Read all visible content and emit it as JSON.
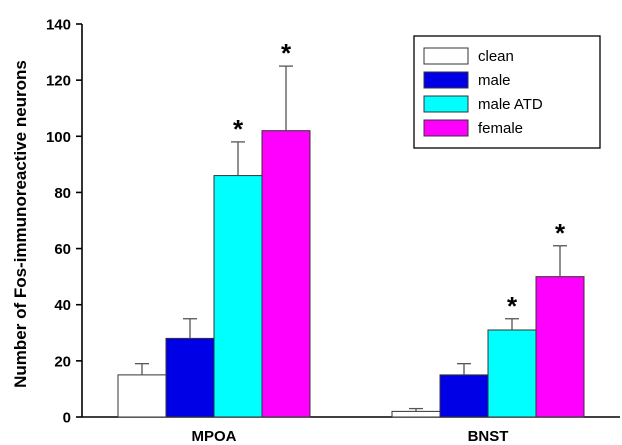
{
  "chart_data": {
    "type": "bar",
    "title": "",
    "xlabel": "",
    "ylabel": "Number of Fos-immunoreactive neurons",
    "ylim": [
      0,
      140
    ],
    "yticks": [
      0,
      20,
      40,
      60,
      80,
      100,
      120,
      140
    ],
    "categories": [
      "MPOA",
      "BNST"
    ],
    "series": [
      {
        "name": "clean",
        "color": "#ffffff",
        "values": [
          15,
          2
        ],
        "errors": [
          4,
          1
        ],
        "significant": [
          false,
          false
        ]
      },
      {
        "name": "male",
        "color": "#0000e6",
        "values": [
          28,
          15
        ],
        "errors": [
          7,
          4
        ],
        "significant": [
          false,
          false
        ]
      },
      {
        "name": "male ATD",
        "color": "#00ffff",
        "values": [
          86,
          31
        ],
        "errors": [
          12,
          4
        ],
        "significant": [
          true,
          true
        ]
      },
      {
        "name": "female",
        "color": "#ff00ff",
        "values": [
          102,
          50
        ],
        "errors": [
          23,
          11
        ],
        "significant": [
          true,
          true
        ]
      }
    ],
    "significance_marker": "*",
    "legend_position": "top-right",
    "grid": false
  }
}
